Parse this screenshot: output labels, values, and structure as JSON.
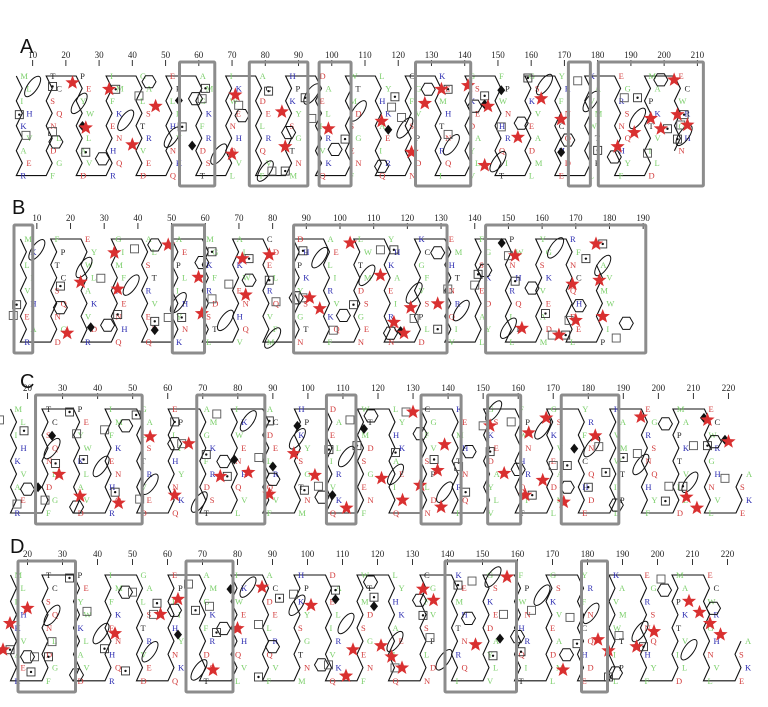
{
  "legend_colors": {
    "hydrophobic": "#7ccf6b",
    "basic": "#2b2bb0",
    "acidic_polar": "#d23b3b",
    "other": "#222222",
    "star": "#d93030",
    "box": "#8c8c8c"
  },
  "symbols": [
    "star-icon",
    "square-icon",
    "dotted-square-icon",
    "diamond-icon",
    "hexagon-icon",
    "oval-icon"
  ],
  "panels": [
    {
      "label": "A",
      "ticks": [
        "10",
        "20",
        "30",
        "40",
        "50",
        "60",
        "70",
        "80",
        "90",
        "100",
        "110",
        "120",
        "130",
        "140",
        "150",
        "160",
        "170",
        "180",
        "190",
        "200",
        "210"
      ],
      "boxes": [
        [
          56,
          63
        ],
        [
          77,
          91
        ],
        [
          98,
          104
        ],
        [
          127,
          140
        ],
        [
          173,
          176
        ],
        [
          182,
          210
        ]
      ],
      "residues": "MLIHKVAERFGDLNQSCTPEYWKLAVDRQHNEKFMIGALSTRVEDQKNYHILPEAMGKFRDSTLVQHNEWKIACDELRQVFMNTGSYKPHDAELIRVKQFNEGSDMTWLYHKAEIRQNDLPSVFGCKEMHTNRQIVLYADEKSGFPWNHRQITLMDAEVKSGYRFNCQHDELPITWMVAKEGRSNQHYFDLIVTKPAMECWRGHN",
      "stars": [
        22,
        26,
        33,
        40,
        47,
        70,
        71,
        85,
        86,
        99,
        115,
        124,
        128,
        133,
        141,
        146,
        147,
        156,
        163,
        169,
        186,
        191,
        196,
        199,
        203,
        204,
        207
      ],
      "squares": [
        8,
        16,
        42,
        61,
        72,
        82,
        94,
        118,
        121,
        135,
        151,
        174,
        188,
        195,
        205
      ],
      "dotted": [
        6,
        16,
        26,
        35,
        55,
        62,
        81,
        86,
        92,
        104,
        119,
        135,
        146,
        159,
        180,
        192,
        201,
        204,
        206
      ],
      "diamonds": [
        25,
        54,
        58,
        117,
        146,
        151,
        169
      ]
    },
    {
      "label": "B",
      "ticks": [
        "10",
        "20",
        "30",
        "40",
        "50",
        "60",
        "70",
        "80",
        "90",
        "100",
        "110",
        "120",
        "130",
        "140",
        "150",
        "160",
        "170",
        "180",
        "190"
      ],
      "boxes": [
        [
          5,
          7
        ],
        [
          52,
          58
        ],
        [
          88,
          130
        ],
        [
          145,
          189
        ]
      ],
      "residues": "MKLIVHEARDGNQSCTPFEYWLAKVDRQHNEKFMIGALSTRVEDQKNYHILPEAMGKFRDSTLVQHNEWKIACDELRQVFMNTGSYKPHDAELIRVKQFNEGSDMTWLYHKAEIRQNDLPSVFGCKEMHTNRQIVLYADEKSGFPWNHRQITLMDAEVKSGYRFNCQHDELPITWMVA",
      "stars": [
        19,
        23,
        33,
        34,
        49,
        58,
        59,
        71,
        72,
        79,
        91,
        94,
        103,
        112,
        116,
        119,
        121,
        129,
        152,
        154,
        165,
        169,
        170,
        176,
        177,
        178
      ],
      "squares": [
        3,
        29,
        39,
        49,
        62,
        67,
        81,
        89,
        98,
        112,
        122,
        132,
        140,
        150,
        163,
        168,
        182
      ],
      "dotted": [
        4,
        17,
        34,
        45,
        53,
        62,
        73,
        79,
        89,
        104,
        116,
        129,
        141,
        152,
        161,
        167,
        173,
        178
      ],
      "diamonds": [
        26,
        45,
        118,
        148
      ]
    },
    {
      "label": "C",
      "ticks": [
        "20",
        "30",
        "40",
        "50",
        "60",
        "70",
        "80",
        "90",
        "100",
        "110",
        "120",
        "130",
        "140",
        "150",
        "160",
        "170",
        "180",
        "190",
        "200",
        "210",
        "220"
      ],
      "boxes": [
        [
          24,
          51
        ],
        [
          70,
          86
        ],
        [
          107,
          112
        ],
        [
          134,
          142
        ],
        [
          153,
          159
        ],
        [
          174,
          187
        ]
      ],
      "residues": "MLIHKVAERFGDLNQSCTPEYWKLAVDRQHNEKFMIGALSTRVEDQKNYHILPEAMGKFRDSTLVQHNEWKIACDELRQVFMNTGSYKPHDAELIRVKQFNEGSDMTWLYHKAEIRQNDLPSVFGCKEMHTNRQIVLYADEKSGFPWNHRQITLMDAEVKSGYRFNCQHDELPITWMVAKEGRSNQHYFDLIVTKPAMECWRGHNVLEKSA",
      "stars": [
        29,
        35,
        46,
        55,
        62,
        66,
        75,
        83,
        89,
        96,
        102,
        111,
        121,
        127,
        130,
        132,
        137,
        138,
        139,
        152,
        156,
        162,
        163,
        167,
        168,
        173,
        182,
        195,
        208,
        211,
        214,
        220
      ],
      "squares": [
        12,
        17,
        25,
        34,
        42,
        52,
        64,
        74,
        86,
        103,
        112,
        128,
        143,
        150,
        158,
        170,
        183,
        194,
        203,
        210,
        219
      ],
      "dotted": [
        10,
        19,
        28,
        32,
        36,
        45,
        51,
        62,
        71,
        77,
        89,
        99,
        106,
        114,
        125,
        136,
        145,
        152,
        164,
        174,
        180,
        185,
        190,
        202,
        207,
        214
      ],
      "diamonds": [
        23,
        27,
        79,
        90,
        97,
        107,
        116,
        176,
        213,
        219
      ]
    },
    {
      "label": "D",
      "ticks": [
        "20",
        "30",
        "40",
        "50",
        "60",
        "70",
        "80",
        "90",
        "100",
        "110",
        "120",
        "130",
        "140",
        "150",
        "160",
        "170",
        "180",
        "190",
        "200",
        "210",
        "220"
      ],
      "boxes": [
        [
          19,
          32
        ],
        [
          67,
          77
        ],
        [
          141,
          158
        ],
        [
          180,
          184
        ]
      ],
      "residues": "MLIHKVAERFGDLNQSCTPEYWKLAVDRQHNEKFMIGALSTRVEDQKNYHILPEAMGKFRDSTLVQHNEWKIACDELRQVFMNTGSYKPHDAELIRVKQFNEGSDMTWLYHKAEIRQNDLPSVFGCKEMHTNRQIVLYADEKSGFPWNHRQITLMDAEVKSGYRFNCQHDELPITWMVAKEGRSNQHYFDLIVTKPAMECWRGHNVLEKSA",
      "stars": [
        13,
        15,
        20,
        45,
        58,
        63,
        73,
        80,
        87,
        101,
        111,
        113,
        121,
        124,
        127,
        133,
        136,
        148,
        157,
        173,
        183,
        186,
        194,
        199,
        209,
        212,
        215,
        218
      ],
      "squares": [
        5,
        22,
        27,
        37,
        50,
        56,
        66,
        72,
        86,
        96,
        106,
        125,
        135,
        147,
        156,
        164,
        175,
        189,
        201
      ],
      "dotted": [
        15,
        21,
        26,
        32,
        42,
        48,
        57,
        68,
        74,
        86,
        92,
        108,
        119,
        133,
        143,
        153,
        161,
        177,
        186,
        196
      ],
      "diamonds": [
        63,
        78,
        108,
        119,
        155
      ]
    }
  ]
}
